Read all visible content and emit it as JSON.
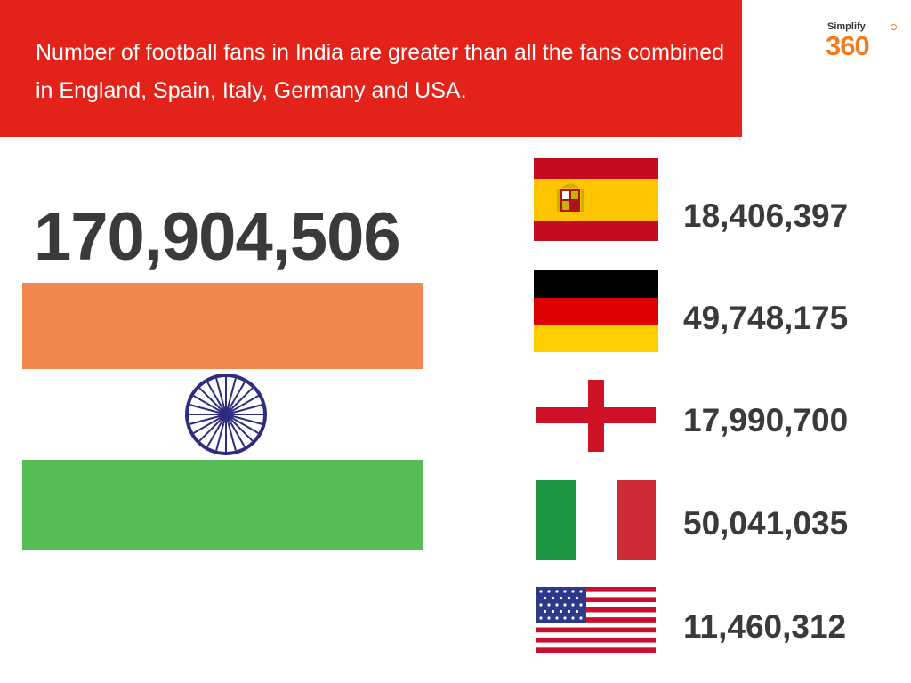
{
  "banner": {
    "headline": "Number of football fans in India are greater than all the fans combined in England, Spain, Italy, Germany and USA.",
    "background_color": "#e32219"
  },
  "logo": {
    "top_text": "Simplify",
    "number_text": "360",
    "accent_color": "#f47c20"
  },
  "india": {
    "fan_count": "170,904,506",
    "flag_icon": "india-flag-icon"
  },
  "countries": [
    {
      "flag_icon": "spain-flag-icon",
      "fan_count": "18,406,397"
    },
    {
      "flag_icon": "germany-flag-icon",
      "fan_count": "49,748,175"
    },
    {
      "flag_icon": "england-flag-icon",
      "fan_count": "17,990,700"
    },
    {
      "flag_icon": "italy-flag-icon",
      "fan_count": "50,041,035"
    },
    {
      "flag_icon": "usa-flag-icon",
      "fan_count": "11,460,312"
    }
  ]
}
